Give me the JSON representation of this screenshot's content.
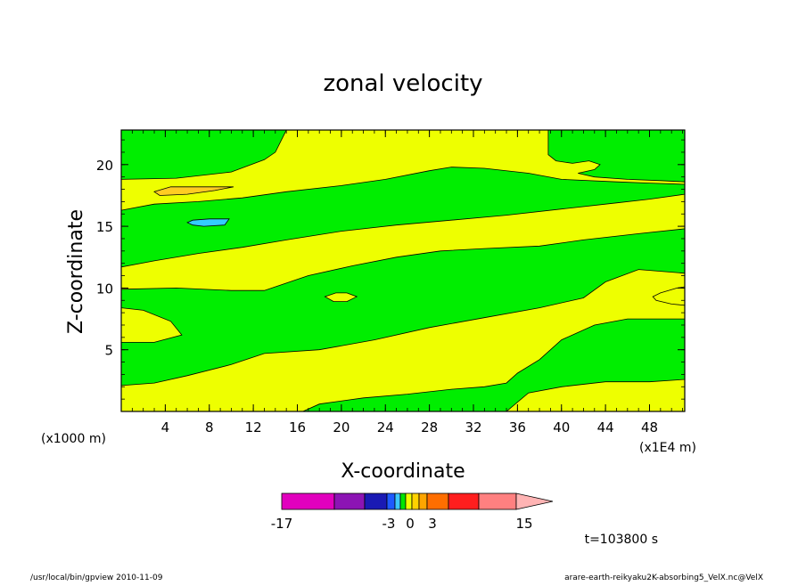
{
  "chart_data": {
    "type": "heatmap",
    "subtype": "filled-contour",
    "title": "zonal velocity",
    "xlabel": "X-coordinate",
    "ylabel": "Z-coordinate",
    "x_unit": "(x1E4 m)",
    "y_unit": "(x1000 m)",
    "x_ticks": [
      4,
      8,
      12,
      16,
      20,
      24,
      28,
      32,
      36,
      40,
      44,
      48
    ],
    "y_ticks": [
      5,
      10,
      15,
      20
    ],
    "xlim": [
      0,
      51.2
    ],
    "ylim": [
      0,
      22.8
    ],
    "time_label": "t=103800 s",
    "colorbar": {
      "tick_labels": [
        "-17",
        "-3",
        "0",
        "3",
        "15"
      ],
      "colors": [
        "#e100be",
        "#8c14b4",
        "#1a1ab4",
        "#1e5aff",
        "#3cc8ff",
        "#00e600",
        "#f0ff00",
        "#ffd200",
        "#ffa500",
        "#ff6e00",
        "#ff1e1e",
        "#ff8080",
        "#ffb4b4"
      ]
    },
    "field_colors": {
      "positive_small": "#eeff00",
      "negative_small": "#00ee00",
      "positive_mid": "#ffcc22",
      "negative_mid": "#33ccff"
    },
    "regions": [
      {
        "value_band": "0 to 3",
        "color": "yellow",
        "points": [
          [
            0,
            0
          ],
          [
            51.2,
            0
          ],
          [
            51.2,
            22.8
          ],
          [
            0,
            22.8
          ]
        ]
      },
      {
        "value_band": "-3 to 0",
        "color": "green",
        "points": [
          [
            0,
            18.8
          ],
          [
            5,
            18.9
          ],
          [
            10,
            19.4
          ],
          [
            13,
            20.4
          ],
          [
            14,
            21.0
          ],
          [
            15,
            22.8
          ],
          [
            0,
            22.8
          ]
        ]
      },
      {
        "value_band": "-3 to 0",
        "color": "green",
        "points": [
          [
            38.8,
            22.8
          ],
          [
            38.8,
            20.8
          ],
          [
            39.5,
            20.3
          ],
          [
            41,
            20.1
          ],
          [
            42.5,
            20.3
          ],
          [
            43.5,
            20.0
          ],
          [
            43,
            19.6
          ],
          [
            41.5,
            19.3
          ],
          [
            43,
            19.0
          ],
          [
            46,
            18.8
          ],
          [
            49,
            18.7
          ],
          [
            51.2,
            18.6
          ],
          [
            51.2,
            22.8
          ]
        ]
      },
      {
        "value_band": "-3 to 0",
        "color": "green",
        "points": [
          [
            0,
            16.3
          ],
          [
            3,
            16.8
          ],
          [
            7,
            17.0
          ],
          [
            11,
            17.3
          ],
          [
            15,
            17.8
          ],
          [
            20,
            18.3
          ],
          [
            24,
            18.8
          ],
          [
            28,
            19.5
          ],
          [
            30,
            19.8
          ],
          [
            33,
            19.7
          ],
          [
            37,
            19.3
          ],
          [
            40,
            18.8
          ],
          [
            45,
            18.6
          ],
          [
            48,
            18.5
          ],
          [
            51.2,
            18.4
          ],
          [
            51.2,
            17.6
          ],
          [
            48,
            17.2
          ],
          [
            45,
            16.9
          ],
          [
            40,
            16.4
          ],
          [
            35,
            15.9
          ],
          [
            30,
            15.5
          ],
          [
            25,
            15.1
          ],
          [
            20,
            14.6
          ],
          [
            15,
            13.9
          ],
          [
            11,
            13.3
          ],
          [
            7,
            12.8
          ],
          [
            3,
            12.2
          ],
          [
            0,
            11.7
          ]
        ]
      },
      {
        "value_band": "-3 to 0",
        "color": "green",
        "points": [
          [
            0,
            9.9
          ],
          [
            5,
            10.0
          ],
          [
            10,
            9.8
          ],
          [
            13,
            9.8
          ],
          [
            17,
            11.0
          ],
          [
            21,
            11.8
          ],
          [
            25,
            12.5
          ],
          [
            29,
            13.0
          ],
          [
            33,
            13.2
          ],
          [
            38,
            13.4
          ],
          [
            42,
            13.9
          ],
          [
            47,
            14.4
          ],
          [
            51.2,
            14.8
          ],
          [
            51.2,
            11.2
          ],
          [
            47,
            11.5
          ],
          [
            44,
            10.5
          ],
          [
            42,
            9.2
          ],
          [
            38,
            8.4
          ],
          [
            33,
            7.6
          ],
          [
            28,
            6.8
          ],
          [
            23,
            5.8
          ],
          [
            18,
            5.0
          ],
          [
            13,
            4.7
          ],
          [
            10,
            3.8
          ],
          [
            6,
            2.9
          ],
          [
            3,
            2.3
          ],
          [
            0,
            2.1
          ],
          [
            0,
            5.6
          ],
          [
            3,
            5.6
          ],
          [
            5.5,
            6.2
          ],
          [
            4.5,
            7.3
          ],
          [
            2,
            8.2
          ],
          [
            0,
            8.4
          ]
        ]
      },
      {
        "value_band": "-3 to 0",
        "color": "green",
        "points": [
          [
            16.5,
            0
          ],
          [
            18,
            0.6
          ],
          [
            22,
            1.1
          ],
          [
            26,
            1.4
          ],
          [
            30,
            1.8
          ],
          [
            33,
            2.0
          ],
          [
            35,
            2.3
          ],
          [
            36,
            3.1
          ],
          [
            38,
            4.2
          ],
          [
            40,
            5.8
          ],
          [
            43,
            7.0
          ],
          [
            46,
            7.5
          ],
          [
            49,
            7.5
          ],
          [
            51.2,
            7.5
          ],
          [
            51.2,
            2.6
          ],
          [
            48,
            2.4
          ],
          [
            44,
            2.4
          ],
          [
            40,
            2.0
          ],
          [
            37,
            1.5
          ],
          [
            35,
            0
          ]
        ]
      },
      {
        "value_band": "0 to 3",
        "color": "yellow",
        "points": [
          [
            48.3,
            9.3
          ],
          [
            49,
            9.6
          ],
          [
            50.5,
            10.0
          ],
          [
            51.2,
            10.1
          ],
          [
            51.2,
            8.6
          ],
          [
            50,
            8.7
          ],
          [
            48.6,
            9.0
          ]
        ]
      },
      {
        "value_band": "0 to 3",
        "color": "yellow",
        "points": [
          [
            18.5,
            9.3
          ],
          [
            19.5,
            9.6
          ],
          [
            20.5,
            9.6
          ],
          [
            21.4,
            9.3
          ],
          [
            20.5,
            8.9
          ],
          [
            19.3,
            8.9
          ]
        ]
      },
      {
        "value_band": "3 to 6",
        "color": "orange",
        "points": [
          [
            3,
            17.8
          ],
          [
            4.5,
            18.2
          ],
          [
            7.5,
            18.2
          ],
          [
            10.2,
            18.2
          ],
          [
            8.5,
            17.9
          ],
          [
            6,
            17.6
          ],
          [
            3.5,
            17.5
          ]
        ]
      },
      {
        "value_band": "-6 to -3",
        "color": "cyan",
        "points": [
          [
            6,
            15.3
          ],
          [
            6.5,
            15.5
          ],
          [
            8,
            15.6
          ],
          [
            9.8,
            15.6
          ],
          [
            9.4,
            15.1
          ],
          [
            7.5,
            15.0
          ],
          [
            6.5,
            15.1
          ]
        ]
      }
    ]
  },
  "footer": {
    "left": "/usr/local/bin/gpview  2010-11-09",
    "right": "arare-earth-reikyaku2K-absorbing5_VelX.nc@VelX"
  }
}
